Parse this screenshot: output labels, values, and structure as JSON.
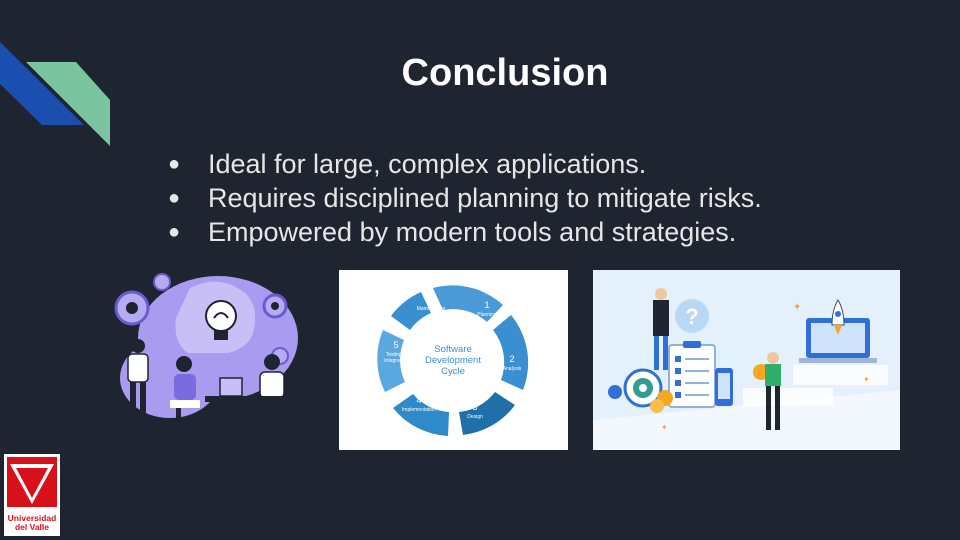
{
  "slide": {
    "title": "Conclusion",
    "bullets": [
      "Ideal for large, complex applications.",
      "Requires disciplined planning to mitigate risks.",
      "Empowered by modern tools and strategies."
    ],
    "bullet_glyph": "●",
    "colors": {
      "background": "#1e2430",
      "accent_blue": "#1a4fb0",
      "accent_green": "#7bc4a0"
    }
  },
  "cycle_diagram": {
    "center_lines": [
      "Software",
      "Development",
      "Cycle"
    ],
    "steps": [
      {
        "num": "1",
        "label": "Planning"
      },
      {
        "num": "2",
        "label": "Analysis"
      },
      {
        "num": "3",
        "label": "Design"
      },
      {
        "num": "4",
        "label": "Implementation"
      },
      {
        "num": "5",
        "label_lines": [
          "Testing &",
          "Integration"
        ]
      },
      {
        "num": "6",
        "label": "Maintenance"
      }
    ]
  },
  "logo": {
    "line1": "Universidad",
    "line2": "del Valle"
  },
  "illustration_icons": {
    "image1": "lightbulb-teamwork-illustration",
    "image3": "rocket-laptop-illustration"
  }
}
